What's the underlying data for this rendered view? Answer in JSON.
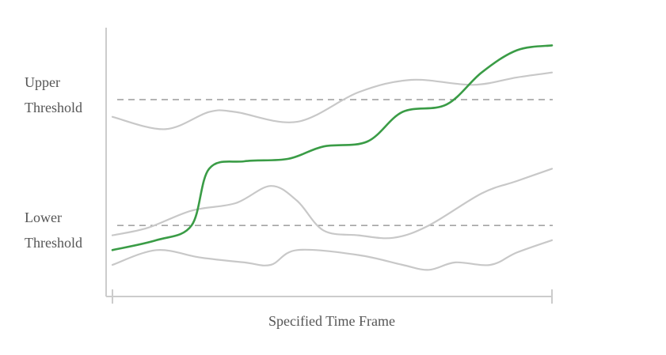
{
  "chart_data": {
    "type": "line",
    "title": "",
    "xlabel": "Specified Time Frame",
    "ylabel": "",
    "xlim": [
      0,
      100
    ],
    "ylim": [
      0,
      100
    ],
    "grid": false,
    "thresholds": [
      {
        "label": "Upper Threshold",
        "y": 75,
        "style": "dashed"
      },
      {
        "label": "Lower Threshold",
        "y": 24,
        "style": "dashed"
      }
    ],
    "series": [
      {
        "color": "#3a9c46",
        "highlight": true,
        "x": [
          0,
          10,
          18,
          22,
          30,
          40,
          48,
          58,
          66,
          76,
          84,
          92,
          100
        ],
        "y": [
          14,
          18,
          24,
          47,
          50,
          51,
          56,
          58,
          70,
          73,
          86,
          95,
          97
        ]
      },
      {
        "color": "#c8c8c8",
        "x": [
          0,
          12,
          22,
          28,
          42,
          56,
          68,
          82,
          92,
          100
        ],
        "y": [
          68,
          63,
          70,
          70,
          66,
          78,
          83,
          81,
          84,
          86
        ]
      },
      {
        "color": "#c8c8c8",
        "x": [
          0,
          8,
          18,
          28,
          36,
          42,
          48,
          56,
          64,
          72,
          84,
          92,
          100
        ],
        "y": [
          20,
          23,
          30,
          33,
          40,
          34,
          22,
          20,
          19,
          24,
          37,
          42,
          47
        ]
      },
      {
        "color": "#c8c8c8",
        "x": [
          0,
          10,
          20,
          30,
          36,
          42,
          56,
          66,
          72,
          78,
          86,
          92,
          100
        ],
        "y": [
          8,
          14,
          11,
          9,
          8,
          14,
          12,
          8,
          6,
          9,
          8,
          13,
          18
        ]
      }
    ]
  }
}
